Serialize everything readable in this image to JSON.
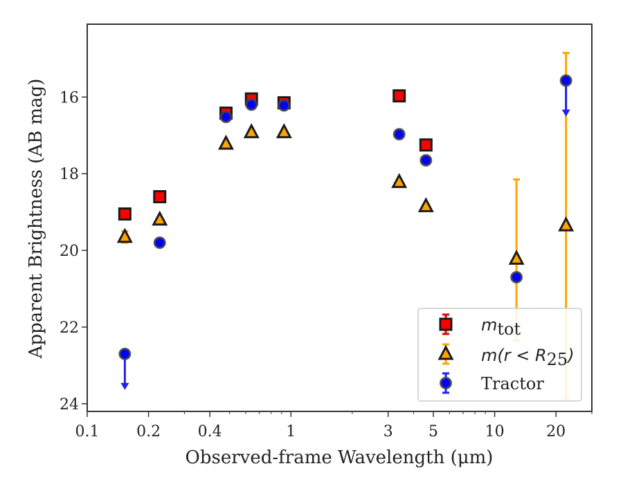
{
  "chart_data": {
    "type": "scatter",
    "xlabel": "Observed-frame Wavelength (μm)",
    "ylabel": "Apparent Brightness (AB mag)",
    "x_scale": "log",
    "xlim": [
      0.1,
      30
    ],
    "ylim": [
      24.2,
      14.1
    ],
    "y_inverted": true,
    "x_ticks": [
      0.1,
      0.2,
      0.4,
      1,
      3,
      5,
      10,
      20
    ],
    "x_tick_labels": [
      "0.1",
      "0.2",
      "0.4",
      "1",
      "3",
      "5",
      "10",
      "20"
    ],
    "y_ticks": [
      16,
      18,
      20,
      22,
      24
    ],
    "y_tick_labels": [
      "16",
      "18",
      "20",
      "22",
      "24"
    ],
    "grid": false,
    "legend_position": "bottom-right",
    "legend": [
      {
        "label_main": "m",
        "label_sub": "tot",
        "marker": "square",
        "color": "#ff0000",
        "errcolor": "#e00000"
      },
      {
        "label_main": "m(r < R",
        "label_sub": "25",
        "label_tail": ")",
        "marker": "triangle",
        "color": "#ffa500",
        "errcolor": "#ffa500"
      },
      {
        "label_main": "Tractor",
        "marker": "circle",
        "color": "#0000ff",
        "errcolor": "#2020ee"
      }
    ],
    "series": [
      {
        "name": "m_tot",
        "marker": "square",
        "color": "#ff0000",
        "errcolor": "#e00000",
        "points": [
          {
            "x": 0.153,
            "y": 19.05
          },
          {
            "x": 0.227,
            "y": 18.6
          },
          {
            "x": 0.48,
            "y": 16.42
          },
          {
            "x": 0.64,
            "y": 16.05
          },
          {
            "x": 0.925,
            "y": 16.15
          },
          {
            "x": 3.4,
            "y": 15.97
          },
          {
            "x": 4.6,
            "y": 17.25
          }
        ]
      },
      {
        "name": "m(r < R25)",
        "marker": "triangle",
        "color": "#ffa500",
        "errcolor": "#ffa500",
        "points": [
          {
            "x": 0.153,
            "y": 19.65,
            "err": 0.15
          },
          {
            "x": 0.227,
            "y": 19.2
          },
          {
            "x": 0.48,
            "y": 17.22
          },
          {
            "x": 0.64,
            "y": 16.92
          },
          {
            "x": 0.925,
            "y": 16.92
          },
          {
            "x": 3.4,
            "y": 18.22
          },
          {
            "x": 4.6,
            "y": 18.85
          },
          {
            "x": 12.8,
            "y": 20.22,
            "ylo": 18.15,
            "yhi": 22.35
          },
          {
            "x": 22.4,
            "y": 19.35,
            "ylo": 14.85,
            "yhi": 23.9
          }
        ]
      },
      {
        "name": "Tractor",
        "marker": "circle",
        "color": "#0000ff",
        "errcolor": "#2020ee",
        "points": [
          {
            "x": 0.153,
            "y": 22.7,
            "upper_limit": true
          },
          {
            "x": 0.227,
            "y": 19.8
          },
          {
            "x": 0.48,
            "y": 16.52
          },
          {
            "x": 0.64,
            "y": 16.2
          },
          {
            "x": 0.925,
            "y": 16.22
          },
          {
            "x": 3.4,
            "y": 16.97
          },
          {
            "x": 4.6,
            "y": 17.65
          },
          {
            "x": 12.8,
            "y": 20.7
          },
          {
            "x": 22.4,
            "y": 15.57,
            "upper_limit": true
          }
        ]
      }
    ]
  }
}
